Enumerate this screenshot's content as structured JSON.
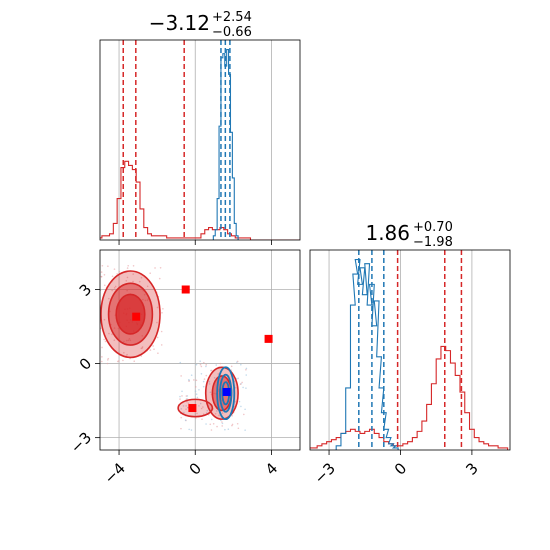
{
  "colors": {
    "red": "#d62728",
    "blue": "#1f77b4",
    "grid": "#b0b0b0",
    "marker_red": "#ff0000",
    "marker_blue": "#0000ff"
  },
  "titles": [
    {
      "main": "−3.12",
      "sup": "+2.54",
      "sub": "−0.66"
    },
    {
      "main": "1.86",
      "sup": "+0.70",
      "sub": "−1.98"
    }
  ],
  "chart_data": [
    {
      "type": "histogram",
      "panel": "marginal-x",
      "xlim": [
        -5,
        5.5
      ],
      "xticks": [
        -4,
        0,
        4
      ],
      "series": [
        {
          "color": "red",
          "x": [
            -5.0,
            -4.8,
            -4.6,
            -4.4,
            -4.2,
            -4.0,
            -3.8,
            -3.6,
            -3.4,
            -3.2,
            -3.0,
            -2.8,
            -2.6,
            -2.4,
            -2.2,
            -2.0,
            -1.8,
            -1.6,
            -1.4,
            -1.2,
            -1.0,
            -0.8,
            -0.6,
            -0.4,
            -0.2,
            0.0,
            0.2,
            0.4,
            0.6,
            0.8,
            1.0,
            1.2,
            1.4,
            1.6,
            1.8,
            2.0,
            2.2,
            2.4,
            2.6,
            2.8,
            3.0,
            3.2,
            3.4,
            3.6,
            3.8,
            4.0,
            4.2,
            4.4,
            4.6,
            4.8,
            5.0,
            5.2,
            5.4
          ],
          "y": [
            1,
            2,
            2,
            3,
            8,
            20,
            35,
            38,
            36,
            34,
            28,
            15,
            6,
            3,
            2,
            2,
            2,
            2,
            1,
            1,
            1,
            1,
            1,
            1,
            1,
            1,
            1,
            3,
            5,
            6,
            5,
            5,
            6,
            5,
            3,
            2,
            1,
            1,
            1,
            1,
            0,
            0,
            0,
            0,
            0,
            0,
            0,
            0,
            0,
            0,
            0,
            0,
            0
          ],
          "quantiles": [
            -3.78,
            -3.12,
            -0.58
          ]
        },
        {
          "color": "blue",
          "x": [
            1.0,
            1.1,
            1.2,
            1.3,
            1.4,
            1.5,
            1.6,
            1.7,
            1.8,
            1.9,
            2.0,
            2.1,
            2.2
          ],
          "y": [
            2,
            5,
            20,
            55,
            88,
            90,
            84,
            92,
            80,
            52,
            30,
            8,
            2
          ],
          "quantiles": [
            1.35,
            1.58,
            1.82
          ]
        }
      ]
    },
    {
      "type": "scatter",
      "panel": "joint",
      "xlim": [
        -5,
        5.5
      ],
      "ylim": [
        -3.5,
        4.6
      ],
      "xticks": [
        -4,
        0,
        4
      ],
      "yticks": [
        -3,
        0,
        3
      ],
      "points_red": [
        [
          -3.1,
          1.9
        ],
        [
          -0.5,
          3.0
        ],
        [
          -0.15,
          -1.8
        ],
        [
          3.85,
          1.0
        ]
      ],
      "points_blue": [
        [
          1.65,
          -1.15
        ]
      ],
      "contours_red": [
        {
          "cx": -3.4,
          "cy": 2.0,
          "rx": 1.55,
          "ry": 1.75,
          "level": 0.3
        },
        {
          "cx": -3.4,
          "cy": 2.0,
          "rx": 1.15,
          "ry": 1.25,
          "level": 0.5
        },
        {
          "cx": -3.4,
          "cy": 2.0,
          "rx": 0.75,
          "ry": 0.8,
          "level": 0.7
        },
        {
          "cx": 1.4,
          "cy": -1.2,
          "rx": 0.85,
          "ry": 1.05,
          "level": 0.3
        },
        {
          "cx": 1.4,
          "cy": -1.2,
          "rx": 0.5,
          "ry": 0.7,
          "level": 0.5
        },
        {
          "cx": 0.0,
          "cy": -1.8,
          "rx": 0.9,
          "ry": 0.35,
          "level": 0.25
        }
      ],
      "contours_blue": [
        {
          "cx": 1.6,
          "cy": -1.2,
          "rx": 0.45,
          "ry": 1.05
        },
        {
          "cx": 1.6,
          "cy": -1.2,
          "rx": 0.3,
          "ry": 0.75
        },
        {
          "cx": 1.6,
          "cy": -1.2,
          "rx": 0.18,
          "ry": 0.45
        }
      ]
    },
    {
      "type": "histogram",
      "panel": "marginal-y",
      "xlim": [
        -3.8,
        4.6
      ],
      "xticks": [
        -3,
        0,
        3
      ],
      "series": [
        {
          "color": "red",
          "x": [
            -3.8,
            -3.6,
            -3.4,
            -3.2,
            -3.0,
            -2.8,
            -2.6,
            -2.4,
            -2.2,
            -2.0,
            -1.8,
            -1.6,
            -1.4,
            -1.2,
            -1.0,
            -0.8,
            -0.6,
            -0.4,
            -0.2,
            0.0,
            0.2,
            0.4,
            0.6,
            0.8,
            1.0,
            1.2,
            1.4,
            1.6,
            1.8,
            2.0,
            2.2,
            2.4,
            2.6,
            2.8,
            3.0,
            3.2,
            3.4,
            3.6,
            3.8,
            4.0,
            4.2,
            4.4
          ],
          "y": [
            1,
            1,
            2,
            3,
            4,
            5,
            6,
            8,
            9,
            10,
            9,
            8,
            9,
            10,
            8,
            6,
            4,
            3,
            2,
            2,
            3,
            4,
            6,
            9,
            14,
            22,
            32,
            44,
            50,
            48,
            42,
            36,
            28,
            18,
            10,
            6,
            4,
            3,
            2,
            2,
            1,
            1
          ],
          "quantiles": [
            -0.12,
            1.86,
            2.56
          ]
        },
        {
          "color": "blue",
          "x": [
            -2.6,
            -2.4,
            -2.2,
            -2.0,
            -1.9,
            -1.8,
            -1.7,
            -1.6,
            -1.5,
            -1.4,
            -1.3,
            -1.2,
            -1.1,
            -1.0,
            -0.9,
            -0.8,
            -0.7,
            -0.6,
            -0.5,
            -0.4,
            -0.3,
            -0.2
          ],
          "y": [
            2,
            8,
            30,
            70,
            85,
            92,
            80,
            88,
            75,
            90,
            70,
            80,
            60,
            72,
            45,
            30,
            18,
            10,
            6,
            3,
            2,
            1
          ],
          "quantiles": [
            -1.75,
            -1.2,
            -0.7
          ]
        }
      ]
    }
  ]
}
